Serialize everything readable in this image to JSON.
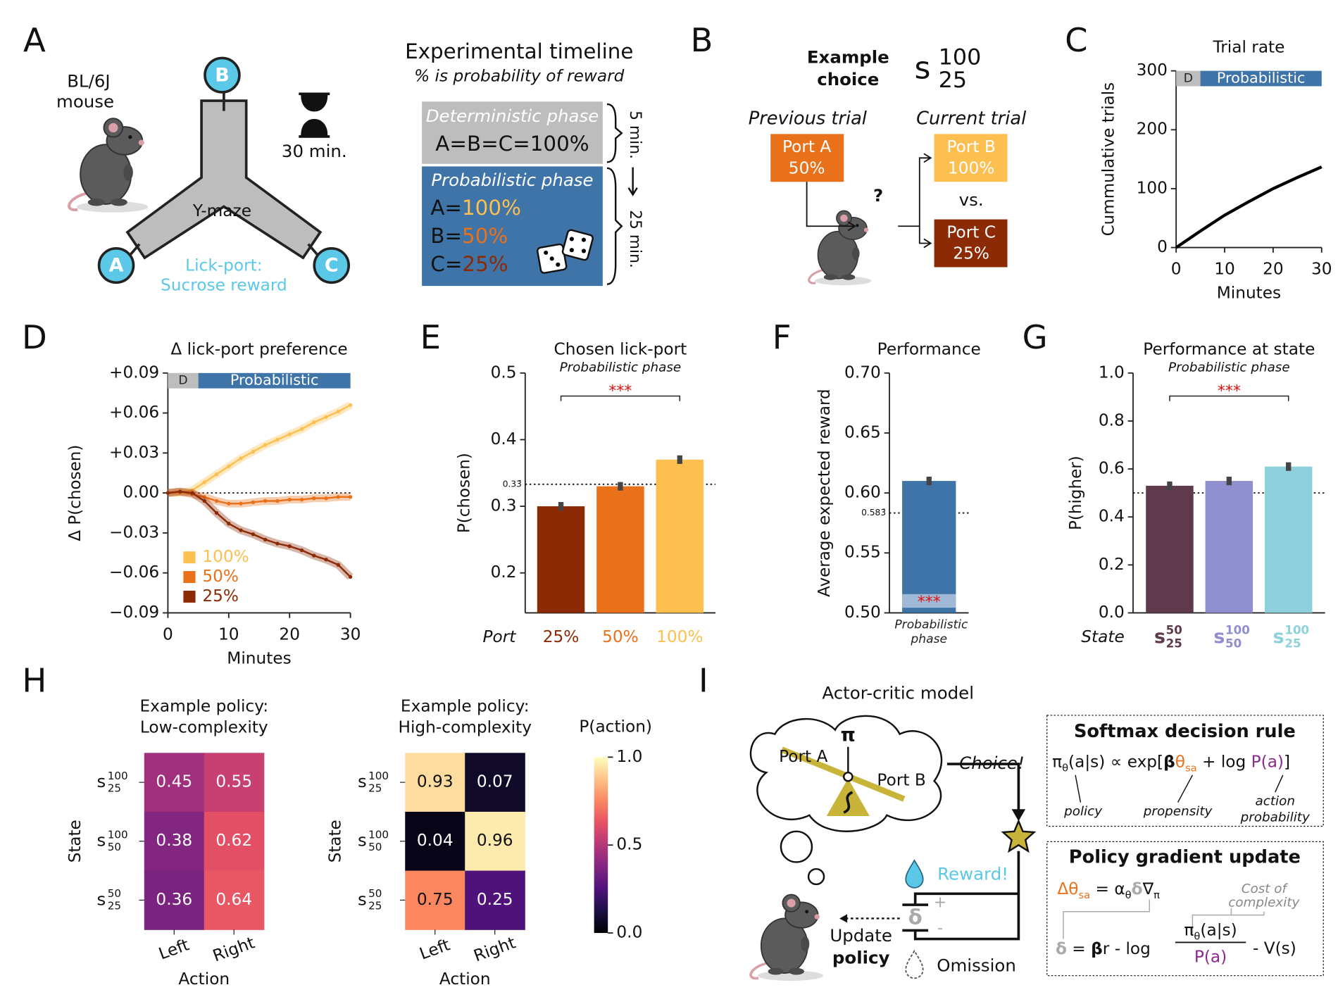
{
  "panel_labels": [
    "A",
    "B",
    "C",
    "D",
    "E",
    "F",
    "G",
    "H",
    "I"
  ],
  "panel_a": {
    "mouse_label": [
      "BL/6J",
      "mouse"
    ],
    "session": "30 min.",
    "maze": "Y-maze",
    "ports": [
      "A",
      "B",
      "C"
    ],
    "lick_port": [
      "Lick-port:",
      "Sucrose reward"
    ],
    "timeline": {
      "title": "Experimental timeline",
      "subtitle": "% is probability of reward",
      "deterministic": {
        "name": "Deterministic phase",
        "rule": "A=B=C=100%"
      },
      "probabilistic": {
        "name": "Probabilistic phase",
        "rules": [
          [
            "A=",
            "100%"
          ],
          [
            "B=",
            "50%"
          ],
          [
            "C=",
            "25%"
          ]
        ]
      },
      "durations": [
        "5 min.",
        "25 min."
      ]
    }
  },
  "panel_b": {
    "title": [
      "Example",
      "choice"
    ],
    "state": {
      "s": "s",
      "top": "100",
      "bottom": "25"
    },
    "previous": "Previous trial",
    "current": "Current trial",
    "previous_port": [
      "Port A",
      "50%"
    ],
    "options": [
      [
        "Port B",
        "100%"
      ],
      [
        "Port C",
        "25%"
      ]
    ],
    "vs": "vs.",
    "question": "?"
  },
  "chart_data": [
    {
      "type": "line",
      "title": "Trial rate",
      "xlabel": "Minutes",
      "ylabel": "Cummulative trials",
      "x": [
        0,
        5,
        10,
        15,
        20,
        25,
        30
      ],
      "series": [
        {
          "color": "#000000",
          "values": [
            0,
            28,
            55,
            78,
            100,
            119,
            137
          ]
        }
      ],
      "xlim": [
        0,
        30
      ],
      "xticks": [
        0,
        10,
        20,
        30
      ],
      "ylim": [
        0,
        300
      ],
      "yticks": [
        0,
        100,
        200,
        300
      ],
      "phases": [
        {
          "label": "D",
          "start": 0,
          "end": 5,
          "color": "#bdbdbd"
        },
        {
          "label": "Probabilistic",
          "start": 5,
          "end": 30,
          "color": "#3f74a8"
        }
      ]
    },
    {
      "type": "line",
      "title": "Δ lick-port preference",
      "xlabel": "Minutes",
      "ylabel": "Δ P(chosen)",
      "x": [
        0,
        2,
        4,
        6,
        8,
        10,
        12,
        14,
        16,
        18,
        20,
        22,
        24,
        26,
        28,
        30
      ],
      "series": [
        {
          "name": "100%",
          "color": "#fdbf4f",
          "values": [
            0,
            0,
            0.002,
            0.008,
            0.014,
            0.02,
            0.026,
            0.031,
            0.036,
            0.04,
            0.044,
            0.048,
            0.053,
            0.057,
            0.061,
            0.066
          ]
        },
        {
          "name": "50%",
          "color": "#e8711a",
          "values": [
            0,
            0.001,
            -0.001,
            -0.003,
            -0.006,
            -0.008,
            -0.008,
            -0.007,
            -0.006,
            -0.006,
            -0.005,
            -0.005,
            -0.004,
            -0.004,
            -0.003,
            -0.003
          ]
        },
        {
          "name": "25%",
          "color": "#8b2a05",
          "values": [
            0,
            0.001,
            0,
            -0.006,
            -0.015,
            -0.023,
            -0.028,
            -0.031,
            -0.035,
            -0.038,
            -0.04,
            -0.043,
            -0.047,
            -0.05,
            -0.054,
            -0.063
          ]
        }
      ],
      "xlim": [
        0,
        30
      ],
      "xticks": [
        0,
        10,
        20,
        30
      ],
      "ylim": [
        -0.09,
        0.09
      ],
      "yticks": [
        {
          "value": -0.09,
          "label": "−0.09"
        },
        {
          "value": -0.06,
          "label": "−0.06"
        },
        {
          "value": -0.03,
          "label": "−0.03"
        },
        {
          "value": 0,
          "label": "0.00"
        },
        {
          "value": 0.03,
          "label": "+0.03"
        },
        {
          "value": 0.06,
          "label": "+0.06"
        },
        {
          "value": 0.09,
          "label": "+0.09"
        }
      ],
      "refline": {
        "value": 0
      },
      "legend": "lower left",
      "phases": [
        {
          "label": "D",
          "start": 0,
          "end": 5,
          "color": "#bdbdbd"
        },
        {
          "label": "Probabilistic",
          "start": 5,
          "end": 30,
          "color": "#3f74a8"
        }
      ]
    },
    {
      "type": "bar",
      "title": "Chosen lick-port",
      "subtitle": "Probabilistic phase",
      "ylabel": "P(chosen)",
      "xlabel": "Port",
      "categories": [
        "25%",
        "50%",
        "100%"
      ],
      "values": [
        0.3,
        0.33,
        0.37
      ],
      "colors": [
        "#8b2a05",
        "#e8711a",
        "#fdbf4f"
      ],
      "ylim": [
        0.14,
        0.5
      ],
      "yticks": [
        0.2,
        0.3,
        0.4,
        0.5
      ],
      "refline": {
        "value": 0.333,
        "label": "0.33̄"
      },
      "annotation": "***"
    },
    {
      "type": "bar",
      "title": "Performance",
      "ylabel": "Average expected reward",
      "categories": [
        "Probabilistic phase"
      ],
      "values": [
        0.61
      ],
      "colors": [
        "#3f74a8"
      ],
      "ylim": [
        0.5,
        0.7
      ],
      "yticks": [
        {
          "value": 0.5,
          "label": "0.50"
        },
        0.55,
        {
          "value": 0.6,
          "label": "0.60"
        },
        0.65,
        {
          "value": 0.7,
          "label": "0.70"
        }
      ],
      "refline": {
        "value": 0.5833,
        "label": "0.583̄"
      },
      "annotation": "***"
    },
    {
      "type": "bar",
      "title": "Performance at state",
      "subtitle": "Probabilistic phase",
      "ylabel": "P(higher)",
      "xlabel": "State",
      "categories": [
        {
          "s": "s",
          "top": "50",
          "bottom": "25"
        },
        {
          "s": "s",
          "top": "100",
          "bottom": "50"
        },
        {
          "s": "s",
          "top": "100",
          "bottom": "25"
        }
      ],
      "values": [
        0.53,
        0.55,
        0.61
      ],
      "colors": [
        "#5e3a4c",
        "#8f8fd0",
        "#8ed0dc"
      ],
      "ylim": [
        0,
        1
      ],
      "yticks": [
        {
          "value": 0,
          "label": "0.0"
        },
        0.2,
        0.4,
        0.6,
        0.8,
        {
          "value": 1,
          "label": "1.0"
        }
      ],
      "refline": {
        "value": 0.5
      },
      "annotation": "***"
    },
    {
      "type": "heatmap",
      "title": [
        "Example policy:",
        "Low-complexity"
      ],
      "xlabel": "Action",
      "ylabel": "State",
      "x_categories": [
        "Left",
        "Right"
      ],
      "y_categories": [
        {
          "s": "s",
          "top": "100",
          "bottom": "25"
        },
        {
          "s": "s",
          "top": "100",
          "bottom": "50"
        },
        {
          "s": "s",
          "top": "50",
          "bottom": "25"
        }
      ],
      "values": [
        [
          0.45,
          0.55
        ],
        [
          0.38,
          0.62
        ],
        [
          0.36,
          0.64
        ]
      ],
      "zlim": [
        0,
        1
      ],
      "colormap": "magma"
    },
    {
      "type": "heatmap",
      "title": [
        "Example policy:",
        "High-complexity"
      ],
      "xlabel": "Action",
      "ylabel": "State",
      "x_categories": [
        "Left",
        "Right"
      ],
      "y_categories": [
        {
          "s": "s",
          "top": "100",
          "bottom": "25"
        },
        {
          "s": "s",
          "top": "100",
          "bottom": "50"
        },
        {
          "s": "s",
          "top": "50",
          "bottom": "25"
        }
      ],
      "values": [
        [
          0.93,
          0.07
        ],
        [
          0.04,
          0.96
        ],
        [
          0.75,
          0.25
        ]
      ],
      "zlim": [
        0,
        1
      ],
      "colormap": "magma",
      "colorbar": {
        "label": "P(action)",
        "ticks": [
          {
            "value": 0,
            "label": "0.0"
          },
          0.5,
          {
            "value": 1,
            "label": "1.0"
          }
        ]
      }
    }
  ],
  "panel_i": {
    "title": "Actor-critic model",
    "cloud": {
      "ports": [
        "Port A",
        "Port B"
      ],
      "policy": "π"
    },
    "choice": "Choice!",
    "reward": "Reward!",
    "omission": "Omission",
    "signs": [
      "+",
      "-"
    ],
    "delta": "δ",
    "update": [
      "Update",
      "policy"
    ],
    "softmax": {
      "title": "Softmax decision rule",
      "formula": [
        "π",
        "θ",
        "(a|s) ∝ exp[",
        "β",
        "θ",
        "sa",
        " + log ",
        "P(a)",
        "]"
      ],
      "notes": [
        "policy",
        "propensity"
      ],
      "note_action": [
        "action",
        "probability"
      ]
    },
    "gradient": {
      "title": "Policy gradient update",
      "update": [
        "Δθ",
        "sa",
        " = α",
        "θ",
        "δ",
        "∇",
        "π"
      ],
      "cost": [
        "Cost of",
        "complexity"
      ],
      "delta": [
        "δ",
        " = ",
        "β",
        "r - log ",
        "- V(s)"
      ],
      "fraction": [
        "π",
        "θ",
        "(a|s)",
        "P(a)"
      ]
    }
  }
}
